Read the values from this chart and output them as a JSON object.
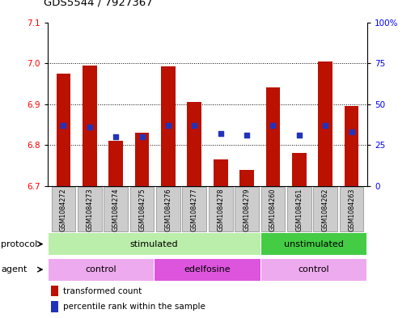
{
  "title": "GDS5544 / 7927367",
  "samples": [
    "GSM1084272",
    "GSM1084273",
    "GSM1084274",
    "GSM1084275",
    "GSM1084276",
    "GSM1084277",
    "GSM1084278",
    "GSM1084279",
    "GSM1084260",
    "GSM1084261",
    "GSM1084262",
    "GSM1084263"
  ],
  "bar_values": [
    6.975,
    6.995,
    6.81,
    6.83,
    6.993,
    6.905,
    6.765,
    6.74,
    6.94,
    6.78,
    7.005,
    6.895
  ],
  "bar_base": 6.7,
  "percentile_values": [
    37,
    36,
    30,
    30,
    37,
    37,
    32,
    31,
    37,
    31,
    37,
    33
  ],
  "ylim": [
    6.7,
    7.1
  ],
  "y2lim": [
    0,
    100
  ],
  "yticks": [
    6.7,
    6.8,
    6.9,
    7.0,
    7.1
  ],
  "y2ticks": [
    0,
    25,
    50,
    75,
    100
  ],
  "y2ticklabels": [
    "0",
    "25",
    "50",
    "75",
    "100%"
  ],
  "ytick_gridlines": [
    6.8,
    6.9,
    7.0
  ],
  "bar_color": "#bb1100",
  "dot_color": "#2233bb",
  "protocol_stimulated_color": "#bbeeaa",
  "protocol_unstimulated_color": "#44cc44",
  "agent_control_color": "#eeaaee",
  "agent_edelfosine_color": "#dd55dd",
  "legend_items": [
    "transformed count",
    "percentile rank within the sample"
  ],
  "legend_colors": [
    "#bb1100",
    "#2233bb"
  ],
  "sample_box_color": "#cccccc",
  "sample_box_edge": "#999999",
  "background_color": "#ffffff",
  "n_stim": 8,
  "n_ctrl1": 4,
  "n_edel": 4,
  "n_ctrl2": 4
}
